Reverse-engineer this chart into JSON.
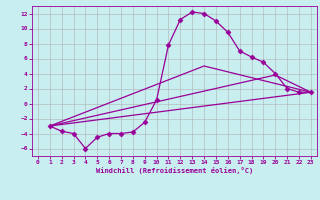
{
  "background_color": "#c8eef0",
  "grid_color": "#b0b0b0",
  "line_color": "#990099",
  "marker_color": "#990099",
  "xlabel": "Windchill (Refroidissement éolien,°C)",
  "xlim": [
    -0.5,
    23.5
  ],
  "ylim": [
    -7,
    13
  ],
  "yticks": [
    -6,
    -4,
    -2,
    0,
    2,
    4,
    6,
    8,
    10,
    12
  ],
  "xticks": [
    0,
    1,
    2,
    3,
    4,
    5,
    6,
    7,
    8,
    9,
    10,
    11,
    12,
    13,
    14,
    15,
    16,
    17,
    18,
    19,
    20,
    21,
    22,
    23
  ],
  "series": [
    {
      "x": [
        1,
        2,
        3,
        4,
        5,
        6,
        7,
        8,
        9,
        10,
        11,
        12,
        13,
        14,
        15,
        16,
        17,
        18,
        19,
        20,
        21,
        22,
        23
      ],
      "y": [
        -3,
        -3.7,
        -4.0,
        -6.0,
        -4.5,
        -4.0,
        -4.0,
        -3.8,
        -2.5,
        0.5,
        7.8,
        11.2,
        12.2,
        12.0,
        11.0,
        9.5,
        7.0,
        6.2,
        5.5,
        4.0,
        2.0,
        1.5,
        1.5
      ],
      "marker": "D",
      "markersize": 2.5,
      "linewidth": 0.9
    },
    {
      "x": [
        1,
        23
      ],
      "y": [
        -3,
        1.5
      ],
      "marker": null,
      "linewidth": 0.9
    },
    {
      "x": [
        1,
        14,
        23
      ],
      "y": [
        -3,
        5.0,
        1.5
      ],
      "marker": null,
      "linewidth": 0.9
    },
    {
      "x": [
        1,
        20,
        23
      ],
      "y": [
        -3,
        3.8,
        1.5
      ],
      "marker": null,
      "linewidth": 0.9
    }
  ]
}
